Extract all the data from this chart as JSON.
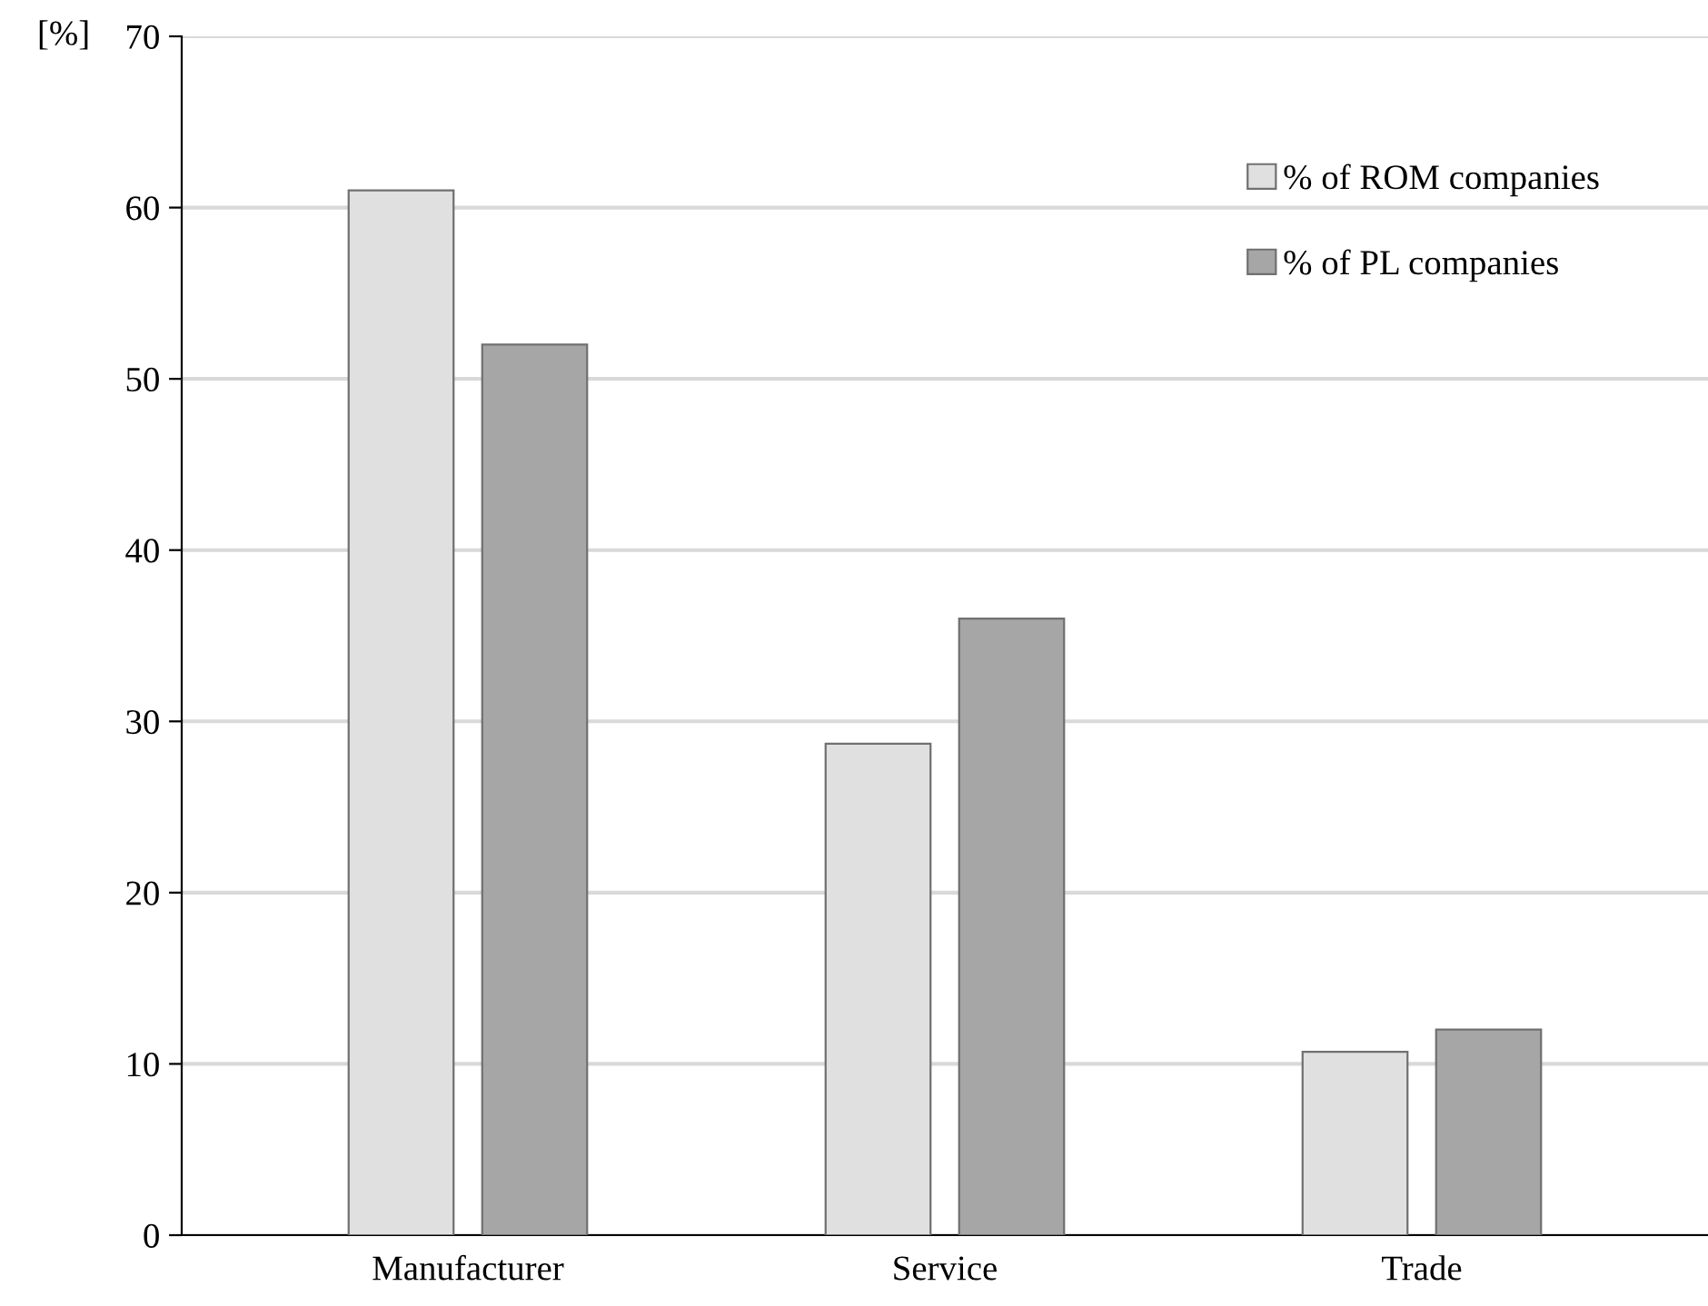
{
  "chart_data": {
    "type": "bar",
    "ylabel": "[%]",
    "categories": [
      "Manufacturer",
      "Service",
      "Trade"
    ],
    "series": [
      {
        "name": "% of ROM companies",
        "color": "#e0e0e0",
        "values": [
          61,
          28.7,
          10.7
        ]
      },
      {
        "name": "% of PL companies",
        "color": "#a6a6a6",
        "values": [
          52,
          36,
          12
        ]
      }
    ],
    "ylim": [
      0,
      70
    ],
    "yticks": [
      0,
      10,
      20,
      30,
      40,
      50,
      60,
      70
    ],
    "grid": "y",
    "legend": "top right"
  }
}
